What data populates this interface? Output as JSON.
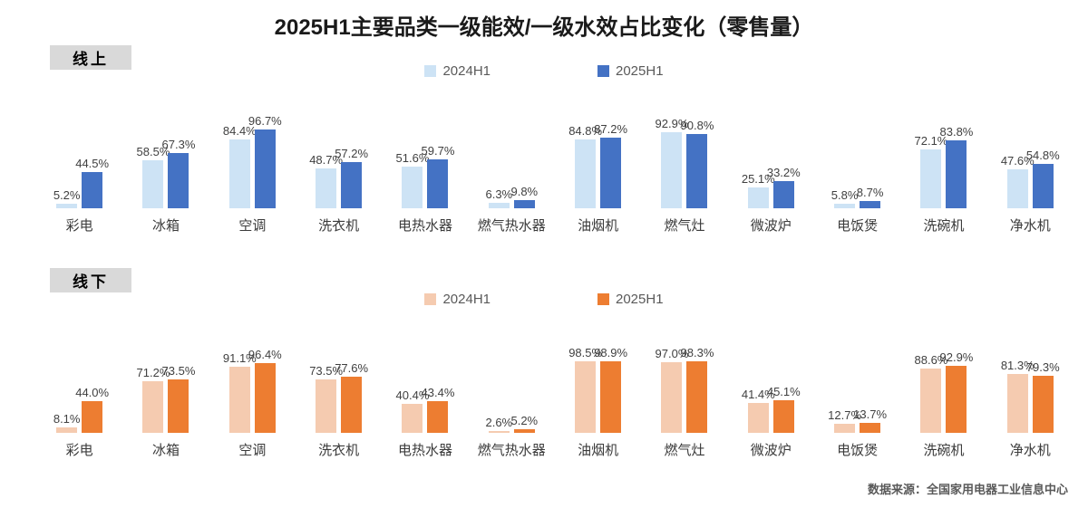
{
  "title": "2025H1主要品类一级能效/一级水效占比变化（零售量）",
  "footer": {
    "text": "数据来源：全国家用电器工业信息中心"
  },
  "colors": {
    "online_2024": "#cde3f5",
    "online_2025": "#4472c4",
    "offline_2024": "#f5cbb0",
    "offline_2025": "#ed7d31",
    "section_tag_bg": "#d9d9d9",
    "value_label": "#404040",
    "legend_text": "#595959"
  },
  "chart_data": [
    {
      "type": "bar",
      "section_label": "线上",
      "categories": [
        "彩电",
        "冰箱",
        "空调",
        "洗衣机",
        "电热水器",
        "燃气热水器",
        "油烟机",
        "燃气灶",
        "微波炉",
        "电饭煲",
        "洗碗机",
        "净水机"
      ],
      "series": [
        {
          "name": "2024H1",
          "color": "#cde3f5",
          "values": [
            5.2,
            58.5,
            84.4,
            48.7,
            51.6,
            6.3,
            84.8,
            92.9,
            25.1,
            5.8,
            72.1,
            47.6
          ]
        },
        {
          "name": "2025H1",
          "color": "#4472c4",
          "values": [
            44.5,
            67.3,
            96.7,
            57.2,
            59.7,
            9.8,
            87.2,
            90.8,
            33.2,
            8.7,
            83.8,
            54.8
          ]
        }
      ],
      "value_suffix": "%",
      "ylim": [
        0,
        100
      ],
      "grid": false,
      "legend_position": "top-center"
    },
    {
      "type": "bar",
      "section_label": "线下",
      "categories": [
        "彩电",
        "冰箱",
        "空调",
        "洗衣机",
        "电热水器",
        "燃气热水器",
        "油烟机",
        "燃气灶",
        "微波炉",
        "电饭煲",
        "洗碗机",
        "净水机"
      ],
      "series": [
        {
          "name": "2024H1",
          "color": "#f5cbb0",
          "values": [
            8.1,
            71.2,
            91.1,
            73.5,
            40.4,
            2.6,
            98.5,
            97.0,
            41.4,
            12.7,
            88.6,
            81.3
          ]
        },
        {
          "name": "2025H1",
          "color": "#ed7d31",
          "values": [
            44.0,
            73.5,
            96.4,
            77.6,
            43.4,
            5.2,
            98.9,
            98.3,
            45.1,
            13.7,
            92.9,
            79.3
          ]
        }
      ],
      "value_suffix": "%",
      "ylim": [
        0,
        100
      ],
      "grid": false,
      "legend_position": "top-center"
    }
  ]
}
